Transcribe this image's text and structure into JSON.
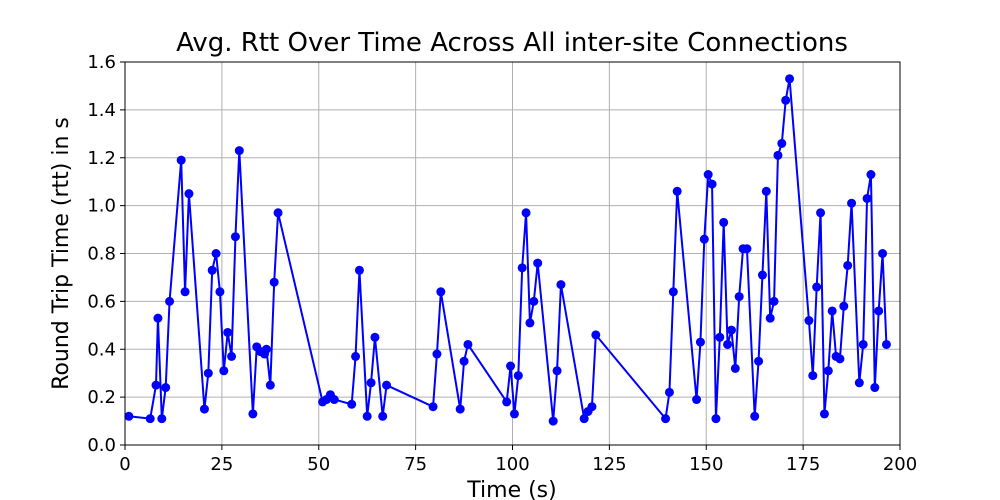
{
  "chart_data": {
    "type": "line",
    "title": "Avg. Rtt Over Time Across All inter-site Connections",
    "xlabel": "Time (s)",
    "ylabel": "Round Trip Time (rtt) in s",
    "xlim": [
      0,
      200
    ],
    "ylim": [
      0.0,
      1.6
    ],
    "x_ticks": [
      "0",
      "25",
      "50",
      "75",
      "100",
      "125",
      "150",
      "175",
      "200"
    ],
    "y_ticks": [
      "0.0",
      "0.2",
      "0.4",
      "0.6",
      "0.8",
      "1.0",
      "1.2",
      "1.4",
      "1.6"
    ],
    "grid": true,
    "series_color": "#0000ff",
    "marker": "circle",
    "series": [
      {
        "x": [
          1,
          6.5,
          8,
          8.5,
          9.5,
          10.5,
          11.5,
          14.5,
          15.5,
          16.5,
          20.5,
          21.5,
          22.5,
          23.5,
          24.5,
          25.5,
          26.5,
          27.5,
          28.5,
          29.5,
          33,
          34,
          35,
          36,
          36.5,
          37.5,
          38.5,
          39.5,
          51,
          52,
          53,
          54,
          58.5,
          59.5,
          60.5,
          62.5,
          63.5,
          64.5,
          66.5,
          67.5,
          79.5,
          80.5,
          81.5,
          86.5,
          87.5,
          88.5,
          98.5,
          99.5,
          100.5,
          101.5,
          102.5,
          103.5,
          104.5,
          105.5,
          106.5,
          110.5,
          111.5,
          112.5,
          118.5,
          119.5,
          120.5,
          121.5,
          139.5,
          140.5,
          141.5,
          142.5,
          147.5,
          148.5,
          149.5,
          150.5,
          151.5,
          152.5,
          153.5,
          154.5,
          155.5,
          156.5,
          157.5,
          158.5,
          159.5,
          160.5,
          162.5,
          163.5,
          164.5,
          165.5,
          166.5,
          167.5,
          168.5,
          169.5,
          170.5,
          171.5,
          176.5,
          177.5,
          178.5,
          179.5,
          180.5,
          181.5,
          182.5,
          183.5,
          184.5,
          185.5,
          186.5,
          187.5,
          189.5,
          190.5,
          191.5,
          192.5,
          193.5,
          194.5,
          195.5,
          196.5
        ],
        "values": [
          0.12,
          0.11,
          0.25,
          0.53,
          0.11,
          0.24,
          0.6,
          1.19,
          0.64,
          1.05,
          0.15,
          0.3,
          0.73,
          0.8,
          0.64,
          0.31,
          0.47,
          0.37,
          0.87,
          1.23,
          0.13,
          0.41,
          0.39,
          0.38,
          0.4,
          0.25,
          0.68,
          0.97,
          0.18,
          0.19,
          0.21,
          0.19,
          0.17,
          0.37,
          0.73,
          0.12,
          0.26,
          0.45,
          0.12,
          0.25,
          0.16,
          0.38,
          0.64,
          0.15,
          0.35,
          0.42,
          0.18,
          0.33,
          0.13,
          0.29,
          0.74,
          0.97,
          0.51,
          0.6,
          0.76,
          0.1,
          0.31,
          0.67,
          0.11,
          0.14,
          0.16,
          0.46,
          0.11,
          0.22,
          0.64,
          1.06,
          0.19,
          0.43,
          0.86,
          1.13,
          1.09,
          0.11,
          0.45,
          0.93,
          0.42,
          0.48,
          0.32,
          0.62,
          0.82,
          0.82,
          0.12,
          0.35,
          0.71,
          1.06,
          0.53,
          0.6,
          1.21,
          1.26,
          1.44,
          1.53,
          0.52,
          0.29,
          0.66,
          0.97,
          0.13,
          0.31,
          0.56,
          0.37,
          0.36,
          0.58,
          0.75,
          1.01,
          0.26,
          0.42,
          1.03,
          1.13,
          0.24,
          0.56,
          0.8,
          0.42
        ]
      }
    ]
  }
}
